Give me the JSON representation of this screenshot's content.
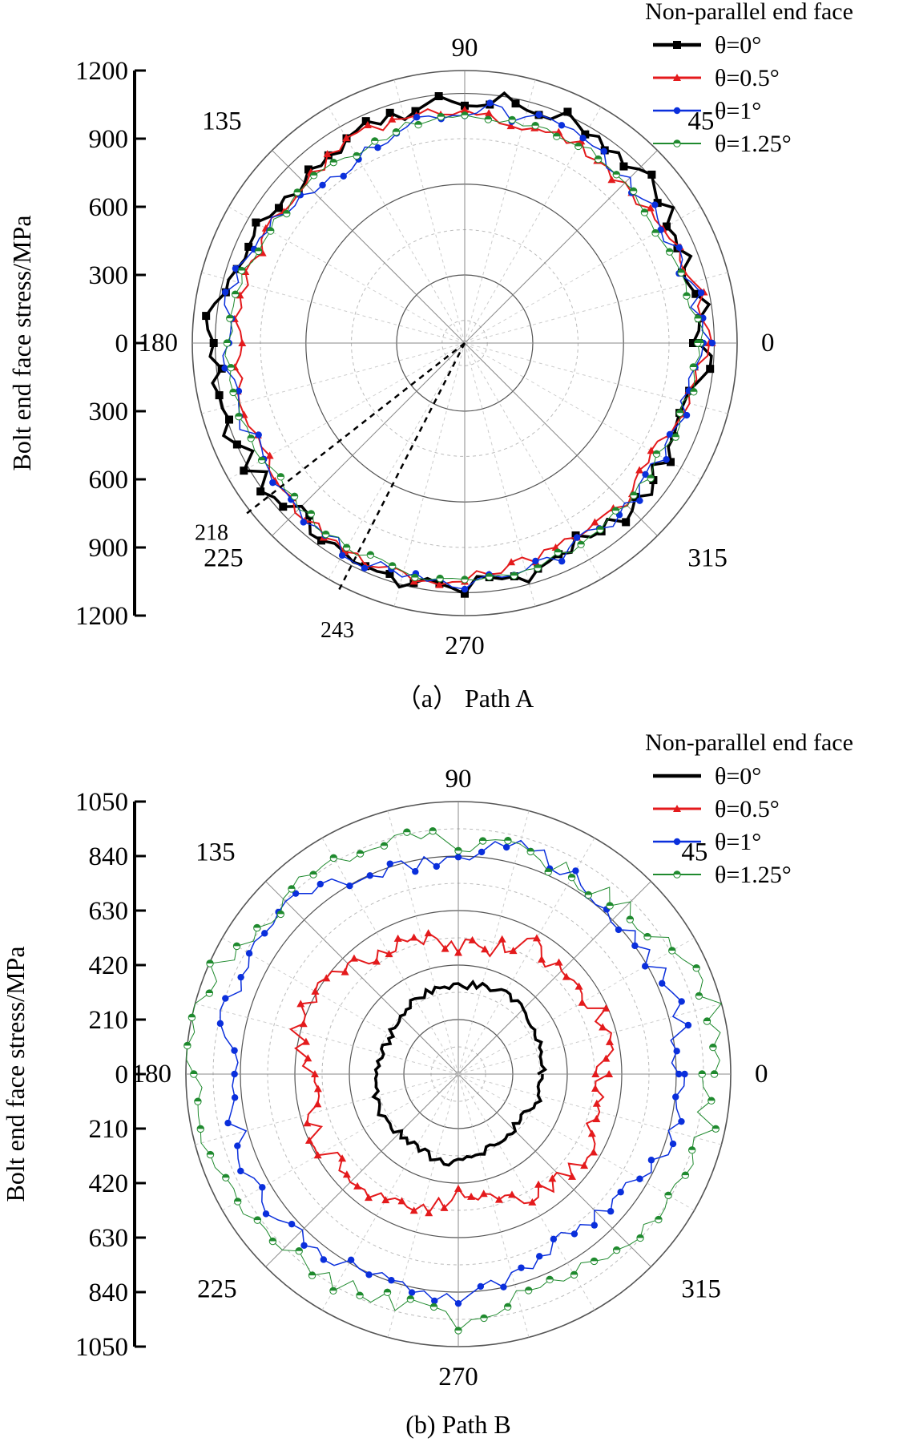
{
  "chart_data": [
    {
      "type": "polar-line",
      "panel": "a",
      "caption": "（a） Path A",
      "legend_title": "Non-parallel end face",
      "radial_axis_label": "Bolt end face stress/MPa",
      "radial_max": 1200,
      "radial_ticks": [
        1200,
        900,
        600,
        300,
        0,
        300,
        600,
        900,
        1200
      ],
      "angle_labels": [
        "0",
        "45",
        "90",
        "135",
        "180",
        "225",
        "270",
        "315"
      ],
      "annotations": [
        {
          "label": "218",
          "angle_deg": 218
        },
        {
          "label": "243",
          "angle_deg": 243
        }
      ],
      "series": [
        {
          "name": "θ=0°",
          "color": "#000000",
          "marker": "square",
          "anchors": [
            [
              0,
              1050
            ],
            [
              15,
              1045
            ],
            [
              30,
              1050
            ],
            [
              45,
              1070
            ],
            [
              60,
              1090
            ],
            [
              75,
              1085
            ],
            [
              90,
              1060
            ],
            [
              105,
              1060
            ],
            [
              120,
              1010
            ],
            [
              135,
              980
            ],
            [
              150,
              1030
            ],
            [
              165,
              1080
            ],
            [
              180,
              1120
            ],
            [
              195,
              1100
            ],
            [
              210,
              1090
            ],
            [
              225,
              1050
            ],
            [
              240,
              1060
            ],
            [
              255,
              1080
            ],
            [
              270,
              1080
            ],
            [
              285,
              1050
            ],
            [
              300,
              1020
            ],
            [
              315,
              1050
            ],
            [
              330,
              1010
            ],
            [
              345,
              1040
            ],
            [
              360,
              1050
            ]
          ]
        },
        {
          "name": "θ=0.5°",
          "color": "#e41a1c",
          "marker": "triangle",
          "anchors": [
            [
              0,
              1070
            ],
            [
              15,
              1050
            ],
            [
              30,
              1000
            ],
            [
              45,
              990
            ],
            [
              60,
              1000
            ],
            [
              75,
              1000
            ],
            [
              90,
              1000
            ],
            [
              105,
              1030
            ],
            [
              120,
              1020
            ],
            [
              135,
              1000
            ],
            [
              150,
              990
            ],
            [
              165,
              1000
            ],
            [
              180,
              1000
            ],
            [
              195,
              1020
            ],
            [
              210,
              1000
            ],
            [
              225,
              1030
            ],
            [
              240,
              1060
            ],
            [
              255,
              1060
            ],
            [
              270,
              1040
            ],
            [
              285,
              1000
            ],
            [
              300,
              970
            ],
            [
              315,
              990
            ],
            [
              330,
              960
            ],
            [
              345,
              1000
            ],
            [
              360,
              1070
            ]
          ]
        },
        {
          "name": "θ=1°",
          "color": "#0a2fdc",
          "marker": "circle",
          "anchors": [
            [
              0,
              1060
            ],
            [
              15,
              1030
            ],
            [
              30,
              1010
            ],
            [
              45,
              1010
            ],
            [
              60,
              1030
            ],
            [
              75,
              1030
            ],
            [
              90,
              1030
            ],
            [
              105,
              1000
            ],
            [
              120,
              920
            ],
            [
              135,
              950
            ],
            [
              150,
              1020
            ],
            [
              165,
              1050
            ],
            [
              180,
              1060
            ],
            [
              195,
              1040
            ],
            [
              210,
              1020
            ],
            [
              225,
              1030
            ],
            [
              240,
              1050
            ],
            [
              255,
              1050
            ],
            [
              270,
              1050
            ],
            [
              285,
              1030
            ],
            [
              300,
              1010
            ],
            [
              315,
              1020
            ],
            [
              330,
              1000
            ],
            [
              345,
              1000
            ],
            [
              360,
              1060
            ]
          ]
        },
        {
          "name": "θ=1.25°",
          "color": "#1f8a2e",
          "marker": "halfcircle",
          "anchors": [
            [
              0,
              1040
            ],
            [
              15,
              1010
            ],
            [
              30,
              980
            ],
            [
              45,
              990
            ],
            [
              60,
              1010
            ],
            [
              75,
              1000
            ],
            [
              90,
              990
            ],
            [
              105,
              990
            ],
            [
              120,
              960
            ],
            [
              135,
              980
            ],
            [
              150,
              990
            ],
            [
              165,
              1030
            ],
            [
              180,
              1040
            ],
            [
              195,
              1030
            ],
            [
              210,
              1020
            ],
            [
              225,
              1020
            ],
            [
              240,
              1030
            ],
            [
              255,
              1040
            ],
            [
              270,
              1050
            ],
            [
              285,
              1040
            ],
            [
              300,
              1020
            ],
            [
              315,
              1000
            ],
            [
              330,
              990
            ],
            [
              345,
              1010
            ],
            [
              360,
              1040
            ]
          ]
        }
      ]
    },
    {
      "type": "polar-line",
      "panel": "b",
      "caption": "(b) Path B",
      "legend_title": "Non-parallel end face",
      "radial_axis_label": "Bolt end face stress/MPa",
      "radial_max": 1050,
      "radial_ticks": [
        1050,
        840,
        630,
        420,
        210,
        0,
        210,
        420,
        630,
        840,
        1050
      ],
      "angle_labels": [
        "0",
        "45",
        "90",
        "135",
        "180",
        "225",
        "270",
        "315"
      ],
      "series": [
        {
          "name": "θ=0°",
          "color": "#000000",
          "marker": "none",
          "anchors": [
            [
              0,
              320
            ],
            [
              15,
              340
            ],
            [
              30,
              340
            ],
            [
              45,
              350
            ],
            [
              60,
              370
            ],
            [
              75,
              350
            ],
            [
              90,
              340
            ],
            [
              105,
              340
            ],
            [
              120,
              330
            ],
            [
              135,
              310
            ],
            [
              150,
              300
            ],
            [
              165,
              300
            ],
            [
              180,
              310
            ],
            [
              195,
              330
            ],
            [
              210,
              340
            ],
            [
              225,
              320
            ],
            [
              240,
              320
            ],
            [
              255,
              340
            ],
            [
              270,
              340
            ],
            [
              285,
              320
            ],
            [
              300,
              300
            ],
            [
              315,
              300
            ],
            [
              330,
              290
            ],
            [
              345,
              330
            ],
            [
              360,
              320
            ]
          ]
        },
        {
          "name": "θ=0.5°",
          "color": "#e41a1c",
          "marker": "triangle",
          "anchors": [
            [
              0,
              560
            ],
            [
              15,
              620
            ],
            [
              30,
              560
            ],
            [
              45,
              560
            ],
            [
              60,
              580
            ],
            [
              75,
              490
            ],
            [
              90,
              500
            ],
            [
              105,
              520
            ],
            [
              120,
              560
            ],
            [
              135,
              590
            ],
            [
              150,
              620
            ],
            [
              165,
              640
            ],
            [
              180,
              580
            ],
            [
              195,
              580
            ],
            [
              210,
              600
            ],
            [
              225,
              560
            ],
            [
              240,
              590
            ],
            [
              255,
              520
            ],
            [
              270,
              470
            ],
            [
              285,
              480
            ],
            [
              300,
              540
            ],
            [
              315,
              570
            ],
            [
              330,
              600
            ],
            [
              345,
              540
            ],
            [
              360,
              560
            ]
          ]
        },
        {
          "name": "θ=1°",
          "color": "#0a2fdc",
          "marker": "circle",
          "anchors": [
            [
              0,
              840
            ],
            [
              15,
              880
            ],
            [
              30,
              860
            ],
            [
              45,
              850
            ],
            [
              60,
              880
            ],
            [
              75,
              930
            ],
            [
              90,
              830
            ],
            [
              105,
              830
            ],
            [
              120,
              860
            ],
            [
              135,
              930
            ],
            [
              150,
              930
            ],
            [
              165,
              920
            ],
            [
              180,
              860
            ],
            [
              195,
              880
            ],
            [
              210,
              900
            ],
            [
              225,
              880
            ],
            [
              240,
              860
            ],
            [
              255,
              840
            ],
            [
              270,
              880
            ],
            [
              285,
              800
            ],
            [
              300,
              760
            ],
            [
              315,
              760
            ],
            [
              330,
              800
            ],
            [
              345,
              860
            ],
            [
              360,
              840
            ]
          ]
        },
        {
          "name": "θ=1.25°",
          "color": "#1f8a2e",
          "marker": "halfcircle",
          "anchors": [
            [
              0,
              960
            ],
            [
              15,
              1020
            ],
            [
              30,
              960
            ],
            [
              45,
              900
            ],
            [
              60,
              880
            ],
            [
              75,
              880
            ],
            [
              90,
              900
            ],
            [
              105,
              920
            ],
            [
              120,
              960
            ],
            [
              135,
              940
            ],
            [
              150,
              990
            ],
            [
              165,
              1060
            ],
            [
              180,
              1020
            ],
            [
              195,
              1000
            ],
            [
              210,
              980
            ],
            [
              225,
              940
            ],
            [
              240,
              930
            ],
            [
              255,
              920
            ],
            [
              270,
              950
            ],
            [
              285,
              890
            ],
            [
              300,
              870
            ],
            [
              315,
              900
            ],
            [
              330,
              960
            ],
            [
              345,
              980
            ],
            [
              360,
              960
            ]
          ]
        }
      ]
    }
  ]
}
